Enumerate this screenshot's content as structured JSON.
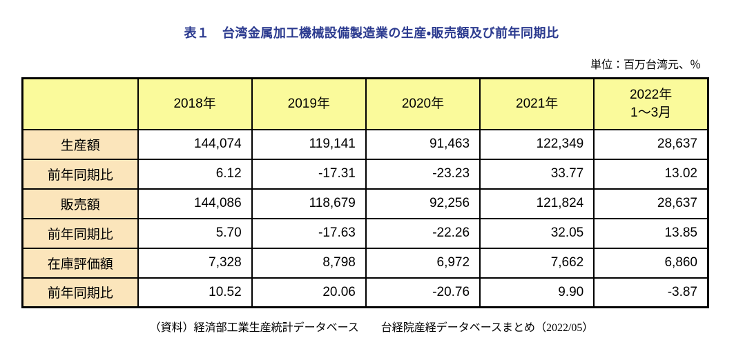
{
  "page": {
    "title": "表１　台湾金属加工機械設備製造業の生産・販売額及び前年同期比",
    "unit_note": "単位：百万台湾元、％",
    "source_note": "（資料）経済部工業生産統計データベース　　台経院産経データベースまとめ（2022/05）"
  },
  "colors": {
    "title_text": "#2b3a8f",
    "header_row_bg": "#fafa9b",
    "row_label_bg": "#fbe5bb",
    "table_border": "#000000",
    "page_bg": "#ffffff"
  },
  "chart_data": {
    "type": "table",
    "title": "表１　台湾金属加工機械設備製造業の生産・販売額及び前年同期比",
    "unit": "単位：百万台湾元、％",
    "corner_label": "",
    "columns": [
      "2018年",
      "2019年",
      "2020年",
      "2021年",
      "2022年\n1～3月"
    ],
    "rows": [
      {
        "label": "生産額",
        "values": [
          "144,074",
          "119,141",
          "91,463",
          "122,349",
          "28,637"
        ]
      },
      {
        "label": "前年同期比",
        "values": [
          "6.12",
          "-17.31",
          "-23.23",
          "33.77",
          "13.02"
        ]
      },
      {
        "label": "販売額",
        "values": [
          "144,086",
          "118,679",
          "92,256",
          "121,824",
          "28,637"
        ]
      },
      {
        "label": "前年同期比",
        "values": [
          "5.70",
          "-17.63",
          "-22.26",
          "32.05",
          "13.85"
        ]
      },
      {
        "label": "在庫評価額",
        "values": [
          "7,328",
          "8,798",
          "6,972",
          "7,662",
          "6,860"
        ]
      },
      {
        "label": "前年同期比",
        "values": [
          "10.52",
          "20.06",
          "-20.76",
          "9.90",
          "-3.87"
        ]
      }
    ],
    "source": "（資料）経済部工業生産統計データベース　　台経院産経データベースまとめ（2022/05）"
  }
}
